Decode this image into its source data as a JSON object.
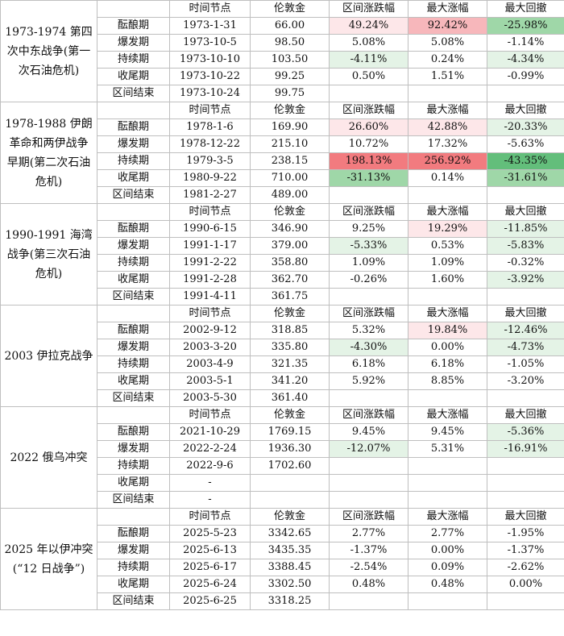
{
  "colors": {
    "up_light": "#fde7e9",
    "up_mid": "#f7b7bb",
    "up_strong": "#f27b7f",
    "down_light": "#e4f3e6",
    "down_mid": "#9fd7a8",
    "down_strong": "#63be7b"
  },
  "headers": [
    "时间节点",
    "伦敦金",
    "区间涨跌幅",
    "最大涨幅",
    "最大回撤"
  ],
  "groups": [
    {
      "event": "1973-1974 第四次中东战争(第一次石油危机)",
      "rows": [
        {
          "phase": "酝酿期",
          "date": "1973-1-31",
          "price": "66.00",
          "change": "49.24%",
          "max_up": "92.42%",
          "max_dd": "-25.98%",
          "change_bg": "up_light",
          "max_up_bg": "up_mid",
          "max_dd_bg": "down_mid"
        },
        {
          "phase": "爆发期",
          "date": "1973-10-5",
          "price": "98.50",
          "change": "5.08%",
          "max_up": "5.08%",
          "max_dd": "-1.14%",
          "change_bg": "",
          "max_up_bg": "",
          "max_dd_bg": ""
        },
        {
          "phase": "持续期",
          "date": "1973-10-10",
          "price": "103.50",
          "change": "-4.11%",
          "max_up": "0.24%",
          "max_dd": "-4.34%",
          "change_bg": "down_light",
          "max_up_bg": "",
          "max_dd_bg": "down_light"
        },
        {
          "phase": "收尾期",
          "date": "1973-10-22",
          "price": "99.25",
          "change": "0.50%",
          "max_up": "1.51%",
          "max_dd": "-0.99%",
          "change_bg": "",
          "max_up_bg": "",
          "max_dd_bg": ""
        },
        {
          "phase": "区间结束",
          "date": "1973-10-24",
          "price": "99.75",
          "change": "",
          "max_up": "",
          "max_dd": "",
          "change_bg": "",
          "max_up_bg": "",
          "max_dd_bg": ""
        }
      ]
    },
    {
      "event": "1978-1988 伊朗革命和两伊战争早期(第二次石油危机)",
      "rows": [
        {
          "phase": "酝酿期",
          "date": "1978-1-6",
          "price": "169.90",
          "change": "26.60%",
          "max_up": "42.88%",
          "max_dd": "-20.33%",
          "change_bg": "up_light",
          "max_up_bg": "up_light",
          "max_dd_bg": "down_light"
        },
        {
          "phase": "爆发期",
          "date": "1978-12-22",
          "price": "215.10",
          "change": "10.72%",
          "max_up": "17.32%",
          "max_dd": "-5.63%",
          "change_bg": "",
          "max_up_bg": "",
          "max_dd_bg": ""
        },
        {
          "phase": "持续期",
          "date": "1979-3-5",
          "price": "238.15",
          "change": "198.13%",
          "max_up": "256.92%",
          "max_dd": "-43.35%",
          "change_bg": "up_strong",
          "max_up_bg": "up_strong",
          "max_dd_bg": "down_strong"
        },
        {
          "phase": "收尾期",
          "date": "1980-9-22",
          "price": "710.00",
          "change": "-31.13%",
          "max_up": "0.14%",
          "max_dd": "-31.61%",
          "change_bg": "down_mid",
          "max_up_bg": "",
          "max_dd_bg": "down_mid"
        },
        {
          "phase": "区间结束",
          "date": "1981-2-27",
          "price": "489.00",
          "change": "",
          "max_up": "",
          "max_dd": "",
          "change_bg": "",
          "max_up_bg": "",
          "max_dd_bg": ""
        }
      ]
    },
    {
      "event": "1990-1991 海湾战争(第三次石油危机)",
      "rows": [
        {
          "phase": "酝酿期",
          "date": "1990-6-15",
          "price": "346.90",
          "change": "9.25%",
          "max_up": "19.29%",
          "max_dd": "-11.85%",
          "change_bg": "",
          "max_up_bg": "up_light",
          "max_dd_bg": "down_light"
        },
        {
          "phase": "爆发期",
          "date": "1991-1-17",
          "price": "379.00",
          "change": "-5.33%",
          "max_up": "0.53%",
          "max_dd": "-5.83%",
          "change_bg": "down_light",
          "max_up_bg": "",
          "max_dd_bg": "down_light"
        },
        {
          "phase": "持续期",
          "date": "1991-2-22",
          "price": "358.80",
          "change": "1.09%",
          "max_up": "1.09%",
          "max_dd": "-0.32%",
          "change_bg": "",
          "max_up_bg": "",
          "max_dd_bg": ""
        },
        {
          "phase": "收尾期",
          "date": "1991-2-28",
          "price": "362.70",
          "change": "-0.26%",
          "max_up": "1.60%",
          "max_dd": "-3.92%",
          "change_bg": "",
          "max_up_bg": "",
          "max_dd_bg": "down_light"
        },
        {
          "phase": "区间结束",
          "date": "1991-4-11",
          "price": "361.75",
          "change": "",
          "max_up": "",
          "max_dd": "",
          "change_bg": "",
          "max_up_bg": "",
          "max_dd_bg": ""
        }
      ]
    },
    {
      "event": "2003 伊拉克战争",
      "rows": [
        {
          "phase": "酝酿期",
          "date": "2002-9-12",
          "price": "318.85",
          "change": "5.32%",
          "max_up": "19.84%",
          "max_dd": "-12.46%",
          "change_bg": "",
          "max_up_bg": "up_light",
          "max_dd_bg": "down_light"
        },
        {
          "phase": "爆发期",
          "date": "2003-3-20",
          "price": "335.80",
          "change": "-4.30%",
          "max_up": "0.00%",
          "max_dd": "-4.73%",
          "change_bg": "down_light",
          "max_up_bg": "",
          "max_dd_bg": "down_light"
        },
        {
          "phase": "持续期",
          "date": "2003-4-9",
          "price": "321.35",
          "change": "6.18%",
          "max_up": "6.18%",
          "max_dd": "-1.05%",
          "change_bg": "",
          "max_up_bg": "",
          "max_dd_bg": ""
        },
        {
          "phase": "收尾期",
          "date": "2003-5-1",
          "price": "341.20",
          "change": "5.92%",
          "max_up": "8.85%",
          "max_dd": "-3.20%",
          "change_bg": "",
          "max_up_bg": "",
          "max_dd_bg": ""
        },
        {
          "phase": "区间结束",
          "date": "2003-5-30",
          "price": "361.40",
          "change": "",
          "max_up": "",
          "max_dd": "",
          "change_bg": "",
          "max_up_bg": "",
          "max_dd_bg": ""
        }
      ]
    },
    {
      "event": "2022 俄乌冲突",
      "rows": [
        {
          "phase": "酝酿期",
          "date": "2021-10-29",
          "price": "1769.15",
          "change": "9.45%",
          "max_up": "9.45%",
          "max_dd": "-5.36%",
          "change_bg": "",
          "max_up_bg": "",
          "max_dd_bg": "down_light"
        },
        {
          "phase": "爆发期",
          "date": "2022-2-24",
          "price": "1936.30",
          "change": "-12.07%",
          "max_up": "5.31%",
          "max_dd": "-16.91%",
          "change_bg": "down_light",
          "max_up_bg": "",
          "max_dd_bg": "down_light"
        },
        {
          "phase": "持续期",
          "date": "2022-9-6",
          "price": "1702.60",
          "change": "",
          "max_up": "",
          "max_dd": "",
          "change_bg": "",
          "max_up_bg": "",
          "max_dd_bg": ""
        },
        {
          "phase": "收尾期",
          "date": "-",
          "price": "",
          "change": "",
          "max_up": "",
          "max_dd": "",
          "change_bg": "",
          "max_up_bg": "",
          "max_dd_bg": ""
        },
        {
          "phase": "区间结束",
          "date": "-",
          "price": "",
          "change": "",
          "max_up": "",
          "max_dd": "",
          "change_bg": "",
          "max_up_bg": "",
          "max_dd_bg": ""
        }
      ]
    },
    {
      "event": "2025 年以伊冲突(“12 日战争”)",
      "rows": [
        {
          "phase": "酝酿期",
          "date": "2025-5-23",
          "price": "3342.65",
          "change": "2.77%",
          "max_up": "2.77%",
          "max_dd": "-1.95%",
          "change_bg": "",
          "max_up_bg": "",
          "max_dd_bg": ""
        },
        {
          "phase": "爆发期",
          "date": "2025-6-13",
          "price": "3435.35",
          "change": "-1.37%",
          "max_up": "0.00%",
          "max_dd": "-1.37%",
          "change_bg": "",
          "max_up_bg": "",
          "max_dd_bg": ""
        },
        {
          "phase": "持续期",
          "date": "2025-6-17",
          "price": "3388.45",
          "change": "-2.54%",
          "max_up": "0.09%",
          "max_dd": "-2.62%",
          "change_bg": "",
          "max_up_bg": "",
          "max_dd_bg": ""
        },
        {
          "phase": "收尾期",
          "date": "2025-6-24",
          "price": "3302.50",
          "change": "0.48%",
          "max_up": "0.48%",
          "max_dd": "0.00%",
          "change_bg": "",
          "max_up_bg": "",
          "max_dd_bg": ""
        },
        {
          "phase": "区间结束",
          "date": "2025-6-25",
          "price": "3318.25",
          "change": "",
          "max_up": "",
          "max_dd": "",
          "change_bg": "",
          "max_up_bg": "",
          "max_dd_bg": ""
        }
      ]
    }
  ]
}
